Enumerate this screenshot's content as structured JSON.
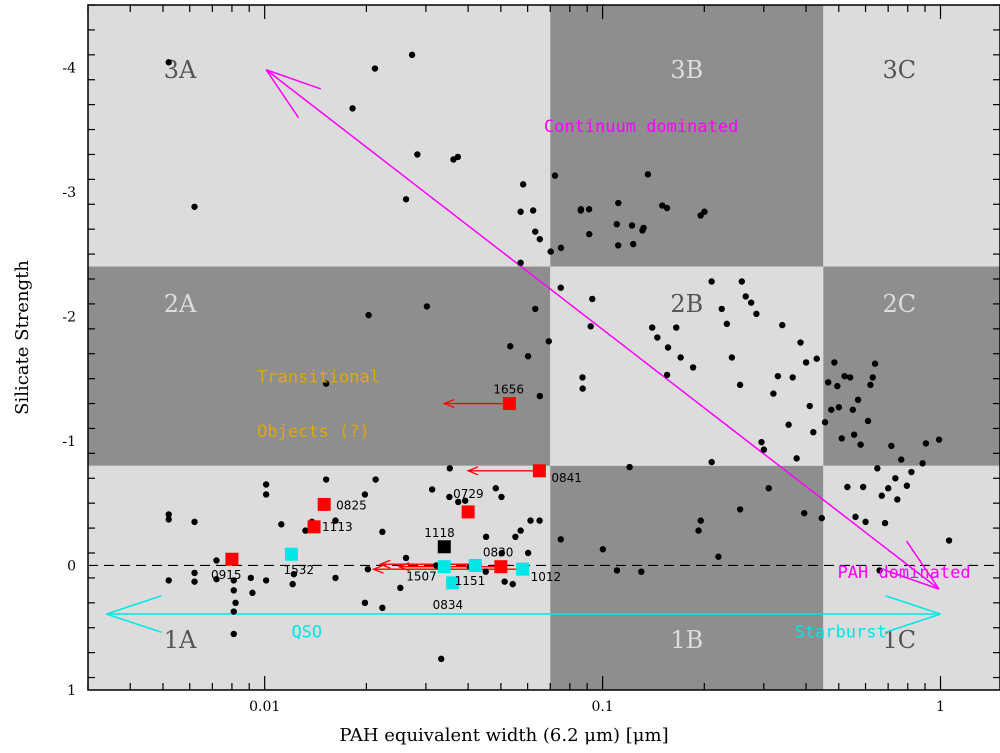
{
  "chart_data": {
    "type": "scatter",
    "xlabel": "PAH equivalent width (6.2 μm) [μm]",
    "ylabel": "Silicate Strength",
    "x_scale": "log",
    "xlim": [
      0.003,
      1.5
    ],
    "ylim": [
      1,
      -4.5
    ],
    "x_ticks": [
      {
        "value": 0.01,
        "label": "0.01"
      },
      {
        "value": 0.1,
        "label": "0.1"
      },
      {
        "value": 1,
        "label": "1"
      }
    ],
    "y_ticks": [
      {
        "value": -4,
        "label": "-4"
      },
      {
        "value": -3,
        "label": "-3"
      },
      {
        "value": -2,
        "label": "-2"
      },
      {
        "value": -1,
        "label": "-1"
      },
      {
        "value": 0,
        "label": "0"
      },
      {
        "value": 1,
        "label": "1"
      }
    ],
    "regions": [
      {
        "label": "3A",
        "x": [
          0.003,
          0.07
        ],
        "y": [
          -4.5,
          -2.4
        ],
        "shade": "light",
        "label_color": "#555555"
      },
      {
        "label": "3B",
        "x": [
          0.07,
          0.45
        ],
        "y": [
          -4.5,
          -2.4
        ],
        "shade": "dark",
        "label_color": "#dddddd"
      },
      {
        "label": "3C",
        "x": [
          0.45,
          1.5
        ],
        "y": [
          -4.5,
          -2.4
        ],
        "shade": "light",
        "label_color": "#555555"
      },
      {
        "label": "2A",
        "x": [
          0.003,
          0.07
        ],
        "y": [
          -2.4,
          -0.8
        ],
        "shade": "dark",
        "label_color": "#dddddd"
      },
      {
        "label": "2B",
        "x": [
          0.07,
          0.45
        ],
        "y": [
          -2.4,
          -0.8
        ],
        "shade": "light",
        "label_color": "#555555"
      },
      {
        "label": "2C",
        "x": [
          0.45,
          1.5
        ],
        "y": [
          -2.4,
          -0.8
        ],
        "shade": "dark",
        "label_color": "#dddddd"
      },
      {
        "label": "1A",
        "x": [
          0.003,
          0.07
        ],
        "y": [
          -0.8,
          1
        ],
        "shade": "light",
        "label_color": "#555555"
      },
      {
        "label": "1B",
        "x": [
          0.07,
          0.45
        ],
        "y": [
          -0.8,
          1
        ],
        "shade": "dark",
        "label_color": "#dddddd"
      },
      {
        "label": "1C",
        "x": [
          0.45,
          1.5
        ],
        "y": [
          -0.8,
          1
        ],
        "shade": "light",
        "label_color": "#555555"
      }
    ],
    "colors": {
      "light": "#dcdcdc",
      "dark": "#8e8e8e",
      "magenta": "#ff00ff",
      "cyan": "#00e5e5",
      "red": "#ff0000",
      "gold": "#e0a800"
    },
    "annotations": [
      {
        "text": "Continuum dominated",
        "x": 0.13,
        "y": -3.48,
        "color": "#ff00ff"
      },
      {
        "text": "PAH dominated",
        "x": 0.78,
        "y": 0.1,
        "color": "#ff00ff"
      },
      {
        "text": "Transitional",
        "x": 0.0095,
        "y": -1.47,
        "color": "#e0a800"
      },
      {
        "text": "Objects (?)",
        "x": 0.0095,
        "y": -1.03,
        "color": "#e0a800"
      },
      {
        "text": "QSO",
        "x": 0.012,
        "y": 0.58,
        "color": "#00e5e5"
      },
      {
        "text": "Starburst",
        "x": 0.37,
        "y": 0.58,
        "color": "#00e5e5"
      }
    ],
    "arrows": [
      {
        "name": "continuum-pah-arrow",
        "x1": 0.0101,
        "y1": -3.98,
        "x2": 0.99,
        "y2": 0.19,
        "color": "#ff00ff",
        "double": true
      },
      {
        "name": "qso-starburst-arrow",
        "x1": 0.0034,
        "y1": 0.39,
        "x2": 1.0,
        "y2": 0.39,
        "color": "#00e5e5",
        "double": true
      }
    ],
    "limit_arrows": [
      {
        "x1": 0.053,
        "x2": 0.034,
        "y": -1.3
      },
      {
        "x1": 0.065,
        "x2": 0.04,
        "y": -0.76
      },
      {
        "x1": 0.05,
        "x2": 0.025,
        "y": 0.01
      },
      {
        "x1": 0.058,
        "x2": 0.021,
        "y": 0.03
      },
      {
        "x1": 0.04,
        "x2": 0.022,
        "y": -0.01
      }
    ],
    "series": [
      {
        "name": "",
        "marker": "small-black-circle",
        "color": "#000000",
        "points": [
          [
            0.0052,
            -4.04
          ],
          [
            0.0062,
            -2.88
          ],
          [
            0.0052,
            -0.41
          ],
          [
            0.0052,
            -0.37
          ],
          [
            0.0052,
            0.12
          ],
          [
            0.0062,
            -0.35
          ],
          [
            0.0062,
            0.06
          ],
          [
            0.0062,
            0.13
          ],
          [
            0.0072,
            -0.04
          ],
          [
            0.0072,
            0.11
          ],
          [
            0.0081,
            0.12
          ],
          [
            0.0081,
            0.2
          ],
          [
            0.0081,
            0.37
          ],
          [
            0.0081,
            0.55
          ],
          [
            0.0082,
            0.3
          ],
          [
            0.0091,
            0.1
          ],
          [
            0.0092,
            0.22
          ],
          [
            0.0101,
            -0.65
          ],
          [
            0.0101,
            -0.57
          ],
          [
            0.0101,
            0.12
          ],
          [
            0.0112,
            -0.33
          ],
          [
            0.0121,
            0.15
          ],
          [
            0.0122,
            0.07
          ],
          [
            0.0132,
            -0.28
          ],
          [
            0.0138,
            -0.35
          ],
          [
            0.0152,
            -0.69
          ],
          [
            0.0152,
            -1.46
          ],
          [
            0.0162,
            -0.36
          ],
          [
            0.0162,
            0.1
          ],
          [
            0.0182,
            -3.67
          ],
          [
            0.0198,
            -0.57
          ],
          [
            0.0198,
            0.3
          ],
          [
            0.0202,
            0.03
          ],
          [
            0.0203,
            -2.01
          ],
          [
            0.0212,
            -3.99
          ],
          [
            0.0213,
            -0.69
          ],
          [
            0.0223,
            -0.27
          ],
          [
            0.0223,
            0.34
          ],
          [
            0.0252,
            0.18
          ],
          [
            0.0262,
            -0.06
          ],
          [
            0.0262,
            -2.94
          ],
          [
            0.0273,
            -4.1
          ],
          [
            0.0283,
            -3.3
          ],
          [
            0.0302,
            -2.08
          ],
          [
            0.0313,
            -0.61
          ],
          [
            0.0322,
            0.0
          ],
          [
            0.0333,
            0.75
          ],
          [
            0.0352,
            -0.55
          ],
          [
            0.0353,
            -0.78
          ],
          [
            0.0362,
            -3.26
          ],
          [
            0.0373,
            -3.28
          ],
          [
            0.0374,
            -0.51
          ],
          [
            0.0392,
            -0.52
          ],
          [
            0.0405,
            0.01
          ],
          [
            0.0451,
            0.05
          ],
          [
            0.0452,
            -0.23
          ],
          [
            0.0483,
            -0.62
          ],
          [
            0.0502,
            -0.55
          ],
          [
            0.0503,
            -0.1
          ],
          [
            0.0513,
            0.13
          ],
          [
            0.0533,
            -1.76
          ],
          [
            0.0542,
            0.15
          ],
          [
            0.0552,
            -0.23
          ],
          [
            0.0572,
            -0.28
          ],
          [
            0.0572,
            -2.43
          ],
          [
            0.0572,
            -2.84
          ],
          [
            0.0582,
            -3.06
          ],
          [
            0.0602,
            -0.1
          ],
          [
            0.0602,
            -1.68
          ],
          [
            0.0612,
            -0.36
          ],
          [
            0.0623,
            -2.85
          ],
          [
            0.0632,
            -2.68
          ],
          [
            0.0632,
            -2.06
          ],
          [
            0.0652,
            -2.62
          ],
          [
            0.0652,
            -1.36
          ],
          [
            0.0651,
            -0.36
          ],
          [
            0.0693,
            -1.8
          ],
          [
            0.0702,
            -2.52
          ],
          [
            0.0723,
            -3.13
          ],
          [
            0.0752,
            -2.23
          ],
          [
            0.0753,
            -2.55
          ],
          [
            0.0752,
            -0.21
          ],
          [
            0.0862,
            -2.85
          ],
          [
            0.0863,
            -2.86
          ],
          [
            0.0872,
            -1.51
          ],
          [
            0.0873,
            -1.42
          ],
          [
            0.0913,
            -2.66
          ],
          [
            0.0912,
            -2.86
          ],
          [
            0.0922,
            -1.92
          ],
          [
            0.0932,
            -2.14
          ],
          [
            0.1002,
            -0.13
          ],
          [
            0.1103,
            0.04
          ],
          [
            0.1102,
            -2.74
          ],
          [
            0.1112,
            -2.57
          ],
          [
            0.1113,
            -2.91
          ],
          [
            0.1202,
            -0.79
          ],
          [
            0.1222,
            -2.73
          ],
          [
            0.1232,
            -2.58
          ],
          [
            0.1302,
            0.05
          ],
          [
            0.1312,
            -2.69
          ],
          [
            0.1322,
            -2.71
          ],
          [
            0.1362,
            -3.14
          ],
          [
            0.1402,
            -1.91
          ],
          [
            0.1452,
            -1.83
          ],
          [
            0.1502,
            -2.89
          ],
          [
            0.1552,
            -1.53
          ],
          [
            0.1551,
            -2.87
          ],
          [
            0.1562,
            -1.75
          ],
          [
            0.1652,
            -1.91
          ],
          [
            0.1702,
            -1.67
          ],
          [
            0.1853,
            -1.59
          ],
          [
            0.1923,
            -0.28
          ],
          [
            0.1952,
            -0.36
          ],
          [
            0.1951,
            -2.81
          ],
          [
            0.2002,
            -2.84
          ],
          [
            0.2102,
            -2.28
          ],
          [
            0.2103,
            -0.83
          ],
          [
            0.2202,
            -0.07
          ],
          [
            0.2252,
            -2.06
          ],
          [
            0.2332,
            -1.94
          ],
          [
            0.2413,
            -1.67
          ],
          [
            0.2552,
            -1.45
          ],
          [
            0.2553,
            -0.45
          ],
          [
            0.2582,
            -2.28
          ],
          [
            0.2652,
            -2.16
          ],
          [
            0.2752,
            -2.11
          ],
          [
            0.2852,
            -2.02
          ],
          [
            0.2953,
            -0.99
          ],
          [
            0.3002,
            -0.93
          ],
          [
            0.3103,
            -0.62
          ],
          [
            0.3202,
            -1.38
          ],
          [
            0.3302,
            -1.52
          ],
          [
            0.3402,
            -1.93
          ],
          [
            0.3553,
            -1.13
          ],
          [
            0.3652,
            -1.51
          ],
          [
            0.3752,
            -0.86
          ],
          [
            0.3852,
            -1.79
          ],
          [
            0.3952,
            -0.42
          ],
          [
            0.4002,
            -1.63
          ],
          [
            0.4102,
            -1.28
          ],
          [
            0.4203,
            -1.07
          ],
          [
            0.4302,
            -1.66
          ],
          [
            0.4452,
            -0.38
          ],
          [
            0.4553,
            -1.15
          ],
          [
            0.4652,
            -1.47
          ],
          [
            0.4752,
            -1.25
          ],
          [
            0.4852,
            -1.63
          ],
          [
            0.4951,
            -1.44
          ],
          [
            0.5003,
            -1.27
          ],
          [
            0.5102,
            -1.02
          ],
          [
            0.5202,
            -1.52
          ],
          [
            0.5302,
            -0.63
          ],
          [
            0.5402,
            -1.51
          ],
          [
            0.5502,
            -1.25
          ],
          [
            0.5552,
            -1.05
          ],
          [
            0.5603,
            -0.39
          ],
          [
            0.5702,
            -1.33
          ],
          [
            0.5802,
            -0.97
          ],
          [
            0.5903,
            -0.63
          ],
          [
            0.6002,
            -0.35
          ],
          [
            0.6103,
            -1.16
          ],
          [
            0.6202,
            -1.45
          ],
          [
            0.6302,
            -1.51
          ],
          [
            0.6402,
            -1.62
          ],
          [
            0.6502,
            -0.78
          ],
          [
            0.6603,
            0.04
          ],
          [
            0.6702,
            -0.56
          ],
          [
            0.6852,
            -0.34
          ],
          [
            0.7002,
            -0.62
          ],
          [
            0.7153,
            -0.96
          ],
          [
            0.7352,
            -0.7
          ],
          [
            0.7452,
            -0.53
          ],
          [
            0.7653,
            -0.85
          ],
          [
            0.7952,
            -0.64
          ],
          [
            0.8202,
            -0.75
          ],
          [
            0.8852,
            -0.82
          ],
          [
            0.9053,
            -0.98
          ],
          [
            0.9902,
            -1.01
          ],
          [
            1.0601,
            -0.2
          ]
        ]
      },
      {
        "name": "",
        "marker": "red-square",
        "color": "#ff0000",
        "points": [
          {
            "x": 0.053,
            "y": -1.3,
            "label": "1656"
          },
          {
            "x": 0.065,
            "y": -0.76,
            "label": "0841"
          },
          {
            "x": 0.04,
            "y": -0.43,
            "label": "0729"
          },
          {
            "x": 0.015,
            "y": -0.49,
            "label": "0825"
          },
          {
            "x": 0.014,
            "y": -0.31,
            "label": "1113"
          },
          {
            "x": 0.008,
            "y": -0.05,
            "label": "0915"
          },
          {
            "x": 0.05,
            "y": 0.01,
            "label": "0830"
          }
        ]
      },
      {
        "name": "",
        "marker": "cyan-square",
        "color": "#00e5e5",
        "points": [
          {
            "x": 0.012,
            "y": -0.09,
            "label": "1532"
          },
          {
            "x": 0.034,
            "y": 0.01,
            "label": "1507"
          },
          {
            "x": 0.042,
            "y": 0.0,
            "label": ""
          },
          {
            "x": 0.058,
            "y": 0.03,
            "label": "1012"
          },
          {
            "x": 0.036,
            "y": 0.14,
            "label": "0834"
          }
        ]
      },
      {
        "name": "",
        "marker": "black-square",
        "color": "#000000",
        "points": [
          {
            "x": 0.034,
            "y": -0.15,
            "label": "1118"
          }
        ]
      }
    ],
    "extra_point_labels": [
      {
        "text": "1151",
        "x": 0.037,
        "y": 0.1
      }
    ]
  }
}
